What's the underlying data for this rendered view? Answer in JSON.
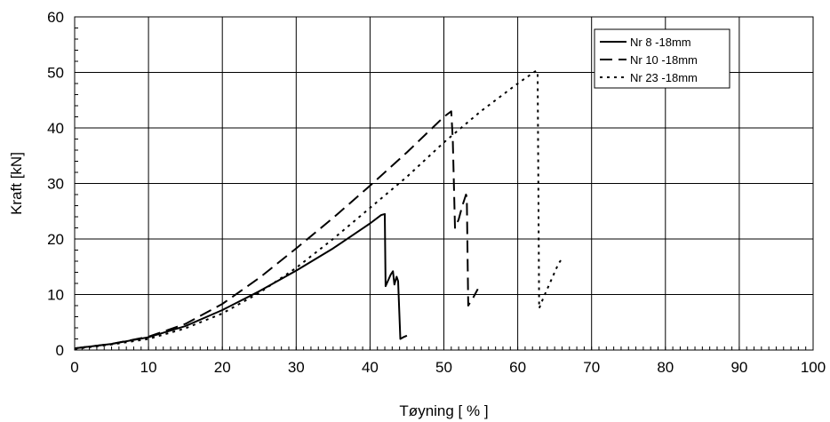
{
  "chart_data": {
    "type": "line",
    "title": "",
    "xlabel": "Tøyning [ % ]",
    "ylabel": "Kraft [kN]",
    "xlim": [
      0,
      100
    ],
    "ylim": [
      0,
      60
    ],
    "xticks": [
      "0",
      "10",
      "20",
      "30",
      "40",
      "50",
      "60",
      "70",
      "80",
      "90",
      "100"
    ],
    "yticks": [
      "0",
      "10",
      "20",
      "30",
      "40",
      "50",
      "60"
    ],
    "grid": true,
    "legend_position": "top-right",
    "series": [
      {
        "name": "Nr 8 -18mm",
        "style": "solid",
        "color": "#000000",
        "points": [
          [
            0,
            0.3
          ],
          [
            5,
            1.1
          ],
          [
            10,
            2.3
          ],
          [
            15,
            4.3
          ],
          [
            20,
            7.2
          ],
          [
            25,
            10.6
          ],
          [
            30,
            14.3
          ],
          [
            35,
            18.3
          ],
          [
            40,
            22.8
          ],
          [
            41.5,
            24.3
          ],
          [
            42,
            24.5
          ],
          [
            42.1,
            11.5
          ],
          [
            42.8,
            13.6
          ],
          [
            43.1,
            14.2
          ],
          [
            43.3,
            11.8
          ],
          [
            43.6,
            13.2
          ],
          [
            43.8,
            12.4
          ],
          [
            44.1,
            2.0
          ],
          [
            44.5,
            2.3
          ],
          [
            45,
            2.6
          ]
        ]
      },
      {
        "name": "Nr 10 -18mm",
        "style": "dashed",
        "color": "#000000",
        "points": [
          [
            0,
            0.3
          ],
          [
            5,
            1.1
          ],
          [
            10,
            2.4
          ],
          [
            15,
            4.7
          ],
          [
            20,
            8.3
          ],
          [
            25,
            13.0
          ],
          [
            30,
            18.3
          ],
          [
            35,
            23.8
          ],
          [
            40,
            29.6
          ],
          [
            45,
            35.6
          ],
          [
            50,
            42.0
          ],
          [
            51,
            43.0
          ],
          [
            51.2,
            38.0
          ],
          [
            51.5,
            22.0
          ],
          [
            52,
            23.5
          ],
          [
            52.5,
            26.0
          ],
          [
            53,
            28.0
          ],
          [
            53.1,
            27.5
          ],
          [
            53.3,
            8.0
          ],
          [
            54,
            9.5
          ],
          [
            54.6,
            11.0
          ]
        ]
      },
      {
        "name": "Nr 23 -18mm",
        "style": "dotted",
        "color": "#000000",
        "points": [
          [
            0,
            0.2
          ],
          [
            5,
            1.0
          ],
          [
            10,
            2.0
          ],
          [
            15,
            3.9
          ],
          [
            20,
            6.6
          ],
          [
            25,
            10.3
          ],
          [
            30,
            14.8
          ],
          [
            35,
            20.0
          ],
          [
            40,
            25.6
          ],
          [
            45,
            31.2
          ],
          [
            50,
            37.4
          ],
          [
            55,
            43.0
          ],
          [
            60,
            48.0
          ],
          [
            62.5,
            50.3
          ],
          [
            62.7,
            50.0
          ],
          [
            62.9,
            7.5
          ],
          [
            63.5,
            9.5
          ],
          [
            64.5,
            12.5
          ],
          [
            65.5,
            15.5
          ],
          [
            66,
            16.5
          ]
        ]
      }
    ]
  }
}
